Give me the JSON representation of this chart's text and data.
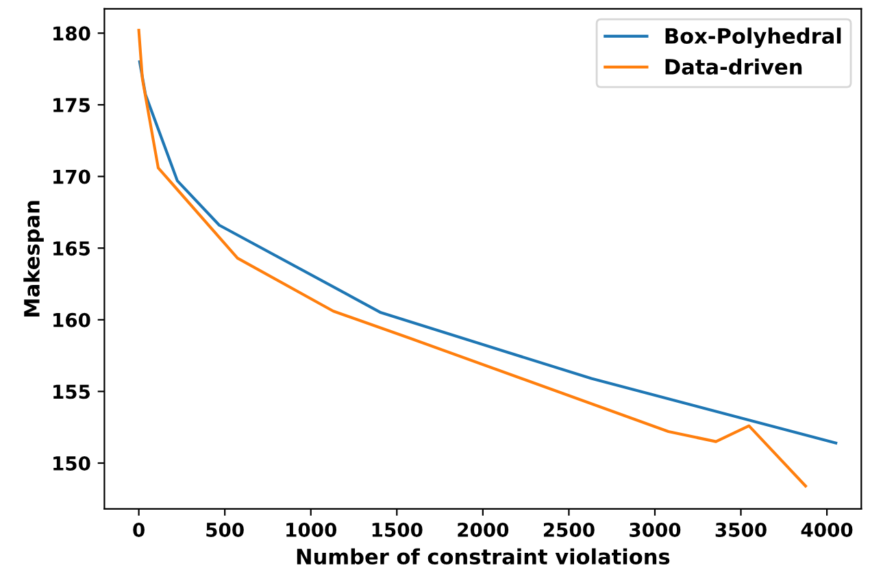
{
  "chart_data": {
    "type": "line",
    "xlabel": "Number of constraint violations",
    "ylabel": "Makespan",
    "series": [
      {
        "name": "Box-Polyhedral",
        "color": "#1f77b4",
        "x": [
          5,
          39,
          224,
          468,
          1407,
          2631,
          4052
        ],
        "values": [
          178.0,
          175.7,
          169.7,
          166.6,
          160.5,
          155.9,
          151.4
        ]
      },
      {
        "name": "Data-driven",
        "color": "#ff7f0e",
        "x": [
          0,
          21,
          113,
          574,
          1131,
          1579,
          3079,
          3355,
          3547,
          3876
        ],
        "values": [
          180.2,
          176.8,
          170.6,
          164.3,
          160.6,
          158.7,
          152.2,
          151.5,
          152.6,
          148.4
        ]
      }
    ],
    "xlim": [
      -200,
      4200
    ],
    "ylim": [
      146.8,
      181.7
    ],
    "xticks": [
      0,
      500,
      1000,
      1500,
      2000,
      2500,
      3000,
      3500,
      4000
    ],
    "yticks": [
      150,
      155,
      160,
      165,
      170,
      175,
      180
    ],
    "legend": "top right",
    "grid": false
  }
}
